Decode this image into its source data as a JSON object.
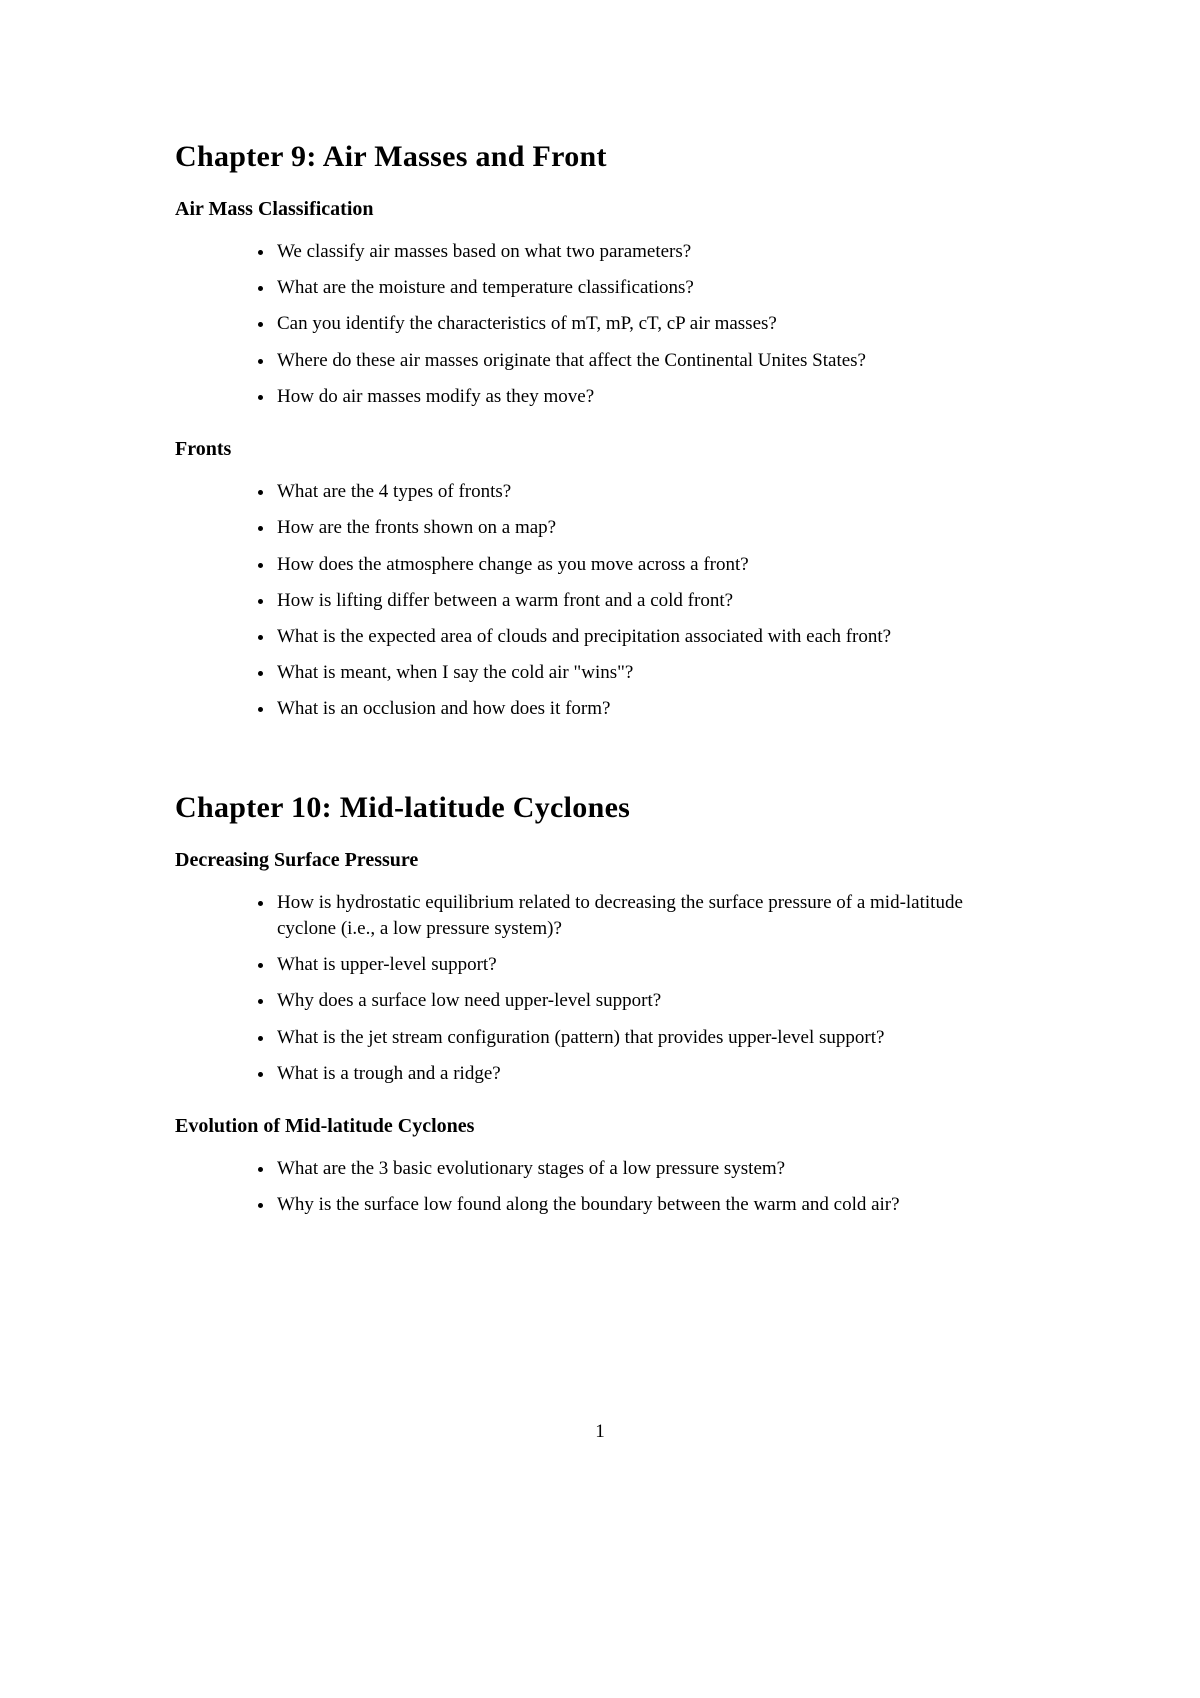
{
  "chapter9": {
    "title": "Chapter 9: Air Masses and Front",
    "sections": [
      {
        "heading": "Air Mass Classification",
        "items": [
          "We classify air masses based on what two parameters?",
          "What are the moisture and temperature classifications?",
          "Can you identify the characteristics of mT, mP, cT, cP air masses?",
          "Where do these air masses originate that affect the Continental Unites States?",
          "How do air masses modify as they move?"
        ]
      },
      {
        "heading": "Fronts",
        "items": [
          "What are the 4 types of fronts?",
          "How are the fronts shown on a map?",
          "How does the atmosphere change as you move across a front?",
          "How is lifting differ between a warm front and a cold front?",
          "What is the expected area of clouds and precipitation associated with each front?",
          "What is meant, when I say the cold air \"wins\"?",
          "What is an occlusion and how does it form?"
        ]
      }
    ]
  },
  "chapter10": {
    "title": "Chapter 10: Mid-latitude Cyclones",
    "sections": [
      {
        "heading": "Decreasing Surface Pressure",
        "items": [
          "How is hydrostatic equilibrium related to decreasing the surface pressure of a mid-latitude cyclone (i.e., a low pressure system)?",
          "What is upper-level support?",
          "Why does a surface low need upper-level support?",
          "What is the jet stream configuration (pattern) that provides upper-level support?",
          "What is a trough and a ridge?"
        ]
      },
      {
        "heading": "Evolution of Mid-latitude Cyclones",
        "items": [
          "What are the 3 basic evolutionary stages of a low pressure system?",
          "Why is the surface low found along the boundary between the warm and cold air?"
        ]
      }
    ]
  },
  "page_number": "1"
}
